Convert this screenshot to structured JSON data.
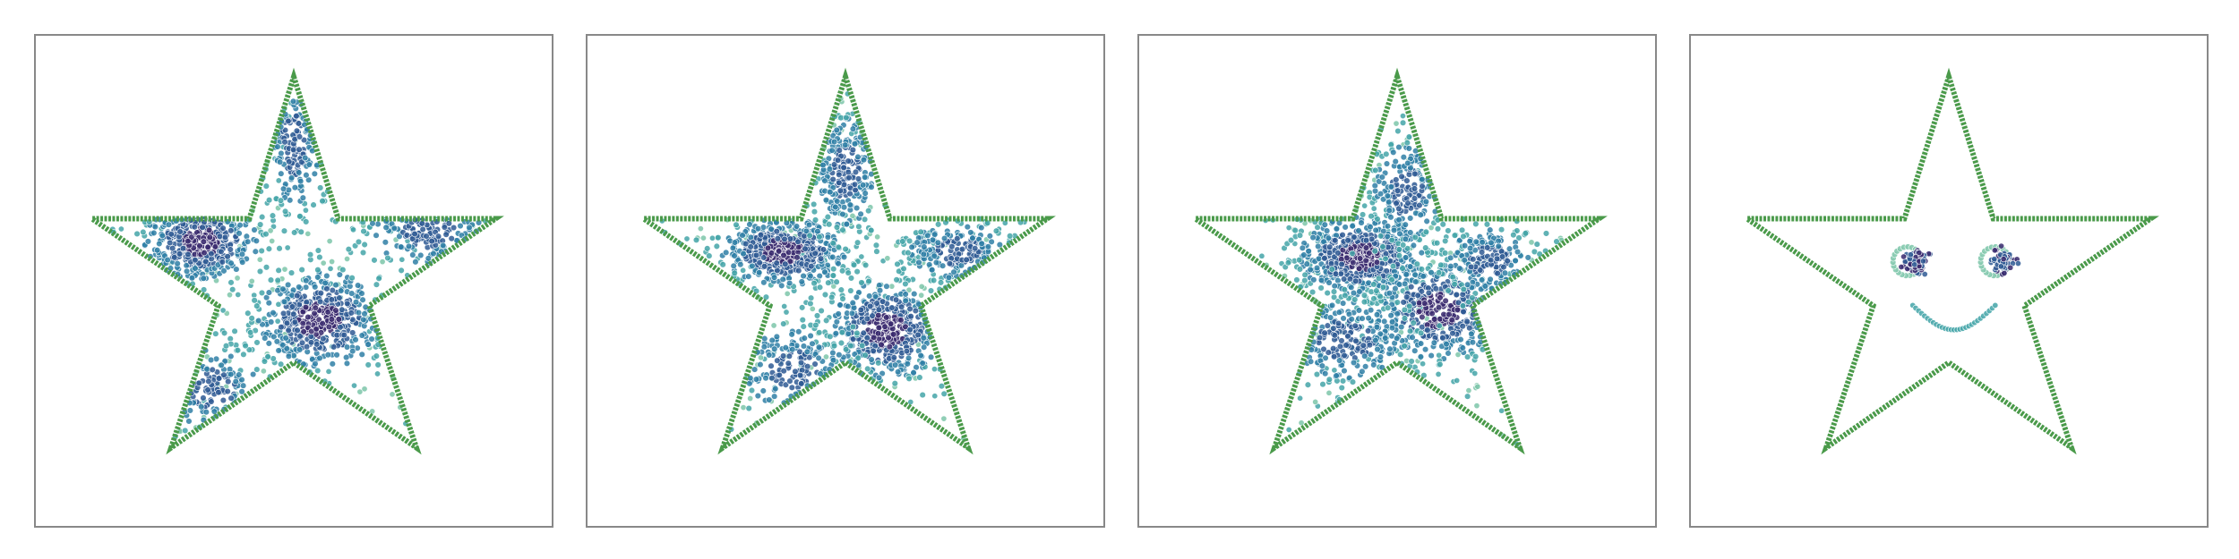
{
  "chart_data": [
    {
      "type": "scatter",
      "panel": 1,
      "title": "",
      "xlabel": "",
      "ylabel": "",
      "grid": false,
      "outline": "star",
      "outline_color": "#4a9a4a",
      "colormap": [
        "#b9e3c4",
        "#7cc6a9",
        "#44a5a8",
        "#2f7fa6",
        "#2f5a94",
        "#3a2a6e"
      ],
      "clusters": [
        {
          "cx": 0.32,
          "cy": 0.42,
          "sx": 0.055,
          "sy": 0.04,
          "n": 520,
          "density": "high"
        },
        {
          "cx": 0.55,
          "cy": 0.58,
          "sx": 0.06,
          "sy": 0.05,
          "n": 480,
          "density": "high"
        },
        {
          "cx": 0.5,
          "cy": 0.22,
          "sx": 0.03,
          "sy": 0.08,
          "n": 220,
          "density": "medium"
        },
        {
          "cx": 0.76,
          "cy": 0.4,
          "sx": 0.07,
          "sy": 0.04,
          "n": 260,
          "density": "medium"
        },
        {
          "cx": 0.34,
          "cy": 0.72,
          "sx": 0.06,
          "sy": 0.05,
          "n": 220,
          "density": "medium"
        }
      ]
    },
    {
      "type": "scatter",
      "panel": 2,
      "title": "",
      "xlabel": "",
      "ylabel": "",
      "grid": false,
      "outline": "star",
      "outline_color": "#4a9a4a",
      "colormap": [
        "#b9e3c4",
        "#7cc6a9",
        "#44a5a8",
        "#2f7fa6",
        "#2f5a94",
        "#3a2a6e"
      ],
      "clusters": [
        {
          "cx": 0.38,
          "cy": 0.44,
          "sx": 0.06,
          "sy": 0.035,
          "n": 520,
          "density": "high"
        },
        {
          "cx": 0.58,
          "cy": 0.6,
          "sx": 0.055,
          "sy": 0.05,
          "n": 480,
          "density": "high"
        },
        {
          "cx": 0.5,
          "cy": 0.28,
          "sx": 0.035,
          "sy": 0.07,
          "n": 260,
          "density": "medium"
        },
        {
          "cx": 0.72,
          "cy": 0.44,
          "sx": 0.06,
          "sy": 0.035,
          "n": 240,
          "density": "medium"
        },
        {
          "cx": 0.4,
          "cy": 0.68,
          "sx": 0.06,
          "sy": 0.05,
          "n": 240,
          "density": "medium"
        }
      ]
    },
    {
      "type": "scatter",
      "panel": 3,
      "title": "",
      "xlabel": "",
      "ylabel": "",
      "grid": false,
      "outline": "star",
      "outline_color": "#4a9a4a",
      "colormap": [
        "#b9e3c4",
        "#7cc6a9",
        "#44a5a8",
        "#2f7fa6",
        "#2f5a94",
        "#3a2a6e"
      ],
      "clusters": [
        {
          "cx": 0.43,
          "cy": 0.45,
          "sx": 0.06,
          "sy": 0.04,
          "n": 600,
          "density": "high"
        },
        {
          "cx": 0.58,
          "cy": 0.56,
          "sx": 0.06,
          "sy": 0.05,
          "n": 420,
          "density": "high"
        },
        {
          "cx": 0.52,
          "cy": 0.32,
          "sx": 0.04,
          "sy": 0.06,
          "n": 240,
          "density": "medium"
        },
        {
          "cx": 0.4,
          "cy": 0.62,
          "sx": 0.07,
          "sy": 0.05,
          "n": 300,
          "density": "medium"
        },
        {
          "cx": 0.68,
          "cy": 0.46,
          "sx": 0.05,
          "sy": 0.04,
          "n": 220,
          "density": "medium"
        }
      ]
    },
    {
      "type": "scatter",
      "panel": 4,
      "title": "",
      "xlabel": "",
      "ylabel": "",
      "grid": false,
      "outline": "star",
      "outline_color": "#4a9a4a",
      "colormap": [
        "#b9e3c4",
        "#7cc6a9",
        "#44a5a8",
        "#2f7fa6",
        "#2f5a94",
        "#3a2a6e"
      ],
      "features": [
        {
          "kind": "eye",
          "cx": 0.43,
          "cy": 0.46,
          "r": 0.028
        },
        {
          "kind": "eye",
          "cx": 0.6,
          "cy": 0.46,
          "r": 0.028
        },
        {
          "kind": "smile",
          "cx": 0.51,
          "cy": 0.55,
          "w": 0.16,
          "h": 0.05
        }
      ]
    }
  ]
}
